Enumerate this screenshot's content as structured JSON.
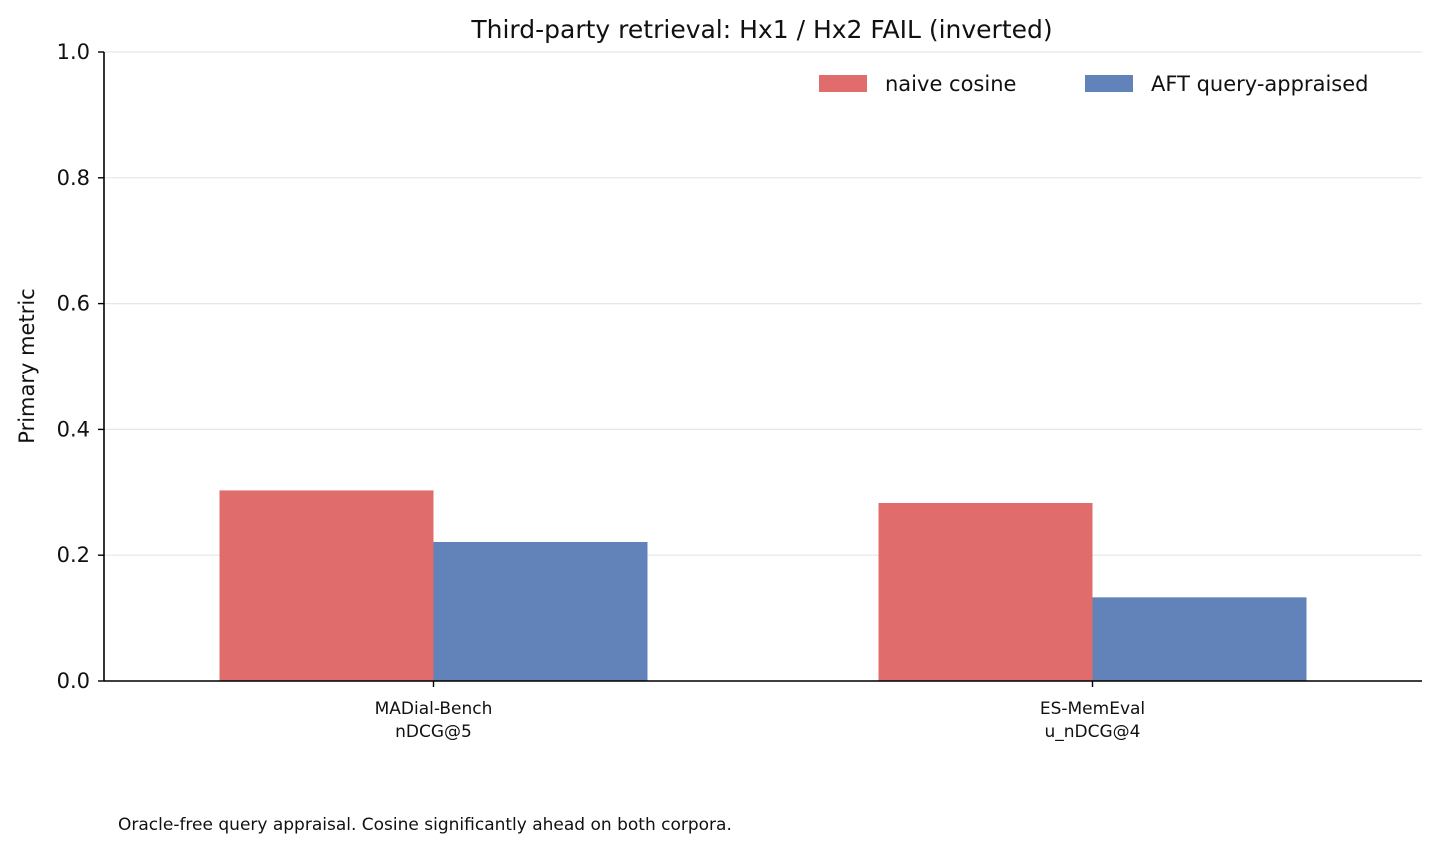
{
  "chart_data": {
    "type": "bar",
    "title": "Third-party retrieval: Hx1 / Hx2 FAIL (inverted)",
    "xlabel": "",
    "ylabel": "Primary metric",
    "ylim": [
      0,
      1.0
    ],
    "yticks": [
      "0.0",
      "0.2",
      "0.4",
      "0.6",
      "0.8",
      "1.0"
    ],
    "grid": "horizontal",
    "legend_position": "top-right",
    "categories": [
      [
        "MADial-Bench",
        "nDCG@5"
      ],
      [
        "ES-MemEval",
        "u_nDCG@4"
      ]
    ],
    "series": [
      {
        "name": "naive cosine",
        "color": "#e06c6c",
        "values": [
          0.303,
          0.283
        ]
      },
      {
        "name": "AFT query-appraised",
        "color": "#6283b9",
        "values": [
          0.221,
          0.133
        ]
      }
    ]
  },
  "footnote": "Oracle-free query appraisal. Cosine significantly ahead on both corpora."
}
